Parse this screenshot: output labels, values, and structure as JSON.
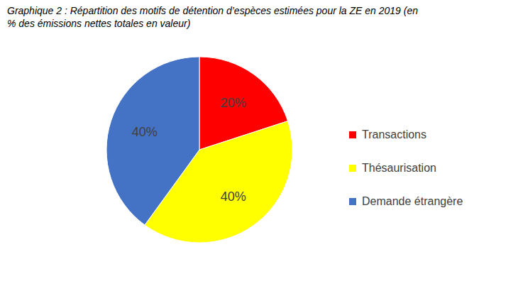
{
  "chart_data": {
    "type": "pie",
    "title": "Graphique 2 : Répartition des motifs de détention d’espèces estimées pour la ZE en 2019 (en % des émissions nettes totales en valeur)",
    "categories": [
      "Transactions",
      "Thésaurisation",
      "Demande étrangère"
    ],
    "values": [
      20,
      40,
      40
    ],
    "value_labels": [
      "20%",
      "40%",
      "40%"
    ],
    "colors": [
      "#ff0000",
      "#ffff00",
      "#4472c4"
    ],
    "data_labels": true,
    "legend": "right"
  }
}
